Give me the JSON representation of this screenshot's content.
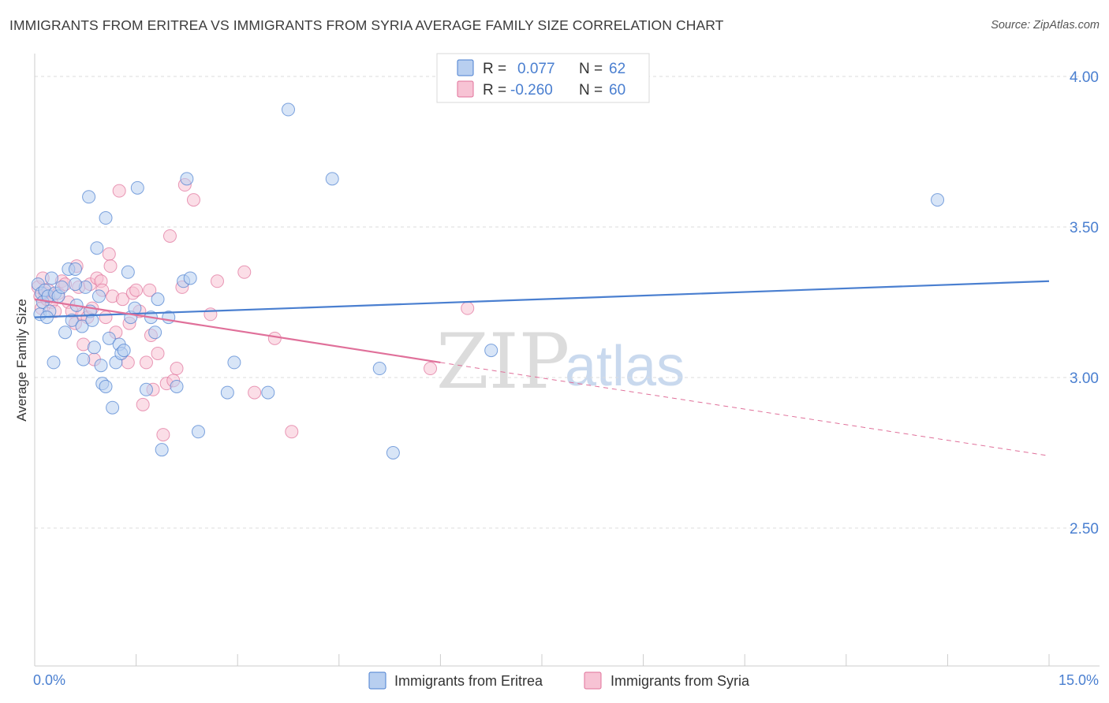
{
  "title": "IMMIGRANTS FROM ERITREA VS IMMIGRANTS FROM SYRIA AVERAGE FAMILY SIZE CORRELATION CHART",
  "source": "Source: ZipAtlas.com",
  "colors": {
    "eritrea": "#4a7fd0",
    "eritrea_fill": "#b8cff0",
    "syria": "#e0709a",
    "syria_fill": "#f7c3d4",
    "axis_text": "#4a7fd0"
  },
  "legend_top": {
    "row1": {
      "r_label": "R =",
      "r_value": "0.077",
      "n_label": "N =",
      "n_value": "62"
    },
    "row2": {
      "r_label": "R =",
      "r_value": "-0.260",
      "n_label": "N =",
      "n_value": "60"
    }
  },
  "watermark": {
    "part1": "ZIP",
    "part2": "atlas"
  },
  "chart_data": {
    "type": "scatter",
    "title": "IMMIGRANTS FROM ERITREA VS IMMIGRANTS FROM SYRIA AVERAGE FAMILY SIZE CORRELATION CHART",
    "xlabel": "",
    "ylabel": "Average Family Size",
    "xlim": [
      0,
      15
    ],
    "ylim": [
      2.0,
      4.05
    ],
    "x_tick_labels": [
      "0.0%",
      "15.0%"
    ],
    "y_ticks": [
      2.5,
      3.0,
      3.5,
      4.0
    ],
    "y_tick_labels": [
      "2.50",
      "3.00",
      "3.50",
      "4.00"
    ],
    "grid": true,
    "series": [
      {
        "name": "Immigrants from Eritrea",
        "r": 0.077,
        "n": 62,
        "trend": {
          "x0": 0.0,
          "y0": 3.2,
          "x1": 15.0,
          "y1": 3.32,
          "style": "solid"
        },
        "points": [
          [
            0.05,
            3.31
          ],
          [
            0.08,
            3.21
          ],
          [
            0.1,
            3.28
          ],
          [
            0.12,
            3.25
          ],
          [
            0.15,
            3.29
          ],
          [
            0.2,
            3.27
          ],
          [
            0.22,
            3.22
          ],
          [
            0.25,
            3.33
          ],
          [
            0.28,
            3.05
          ],
          [
            0.3,
            3.28
          ],
          [
            0.35,
            3.27
          ],
          [
            0.4,
            3.3
          ],
          [
            0.45,
            3.15
          ],
          [
            0.5,
            3.36
          ],
          [
            0.55,
            3.19
          ],
          [
            0.6,
            3.36
          ],
          [
            0.62,
            3.24
          ],
          [
            0.7,
            3.17
          ],
          [
            0.72,
            3.06
          ],
          [
            0.75,
            3.3
          ],
          [
            0.8,
            3.6
          ],
          [
            0.82,
            3.22
          ],
          [
            0.85,
            3.19
          ],
          [
            0.88,
            3.1
          ],
          [
            0.92,
            3.43
          ],
          [
            0.95,
            3.27
          ],
          [
            0.98,
            3.04
          ],
          [
            1.0,
            2.98
          ],
          [
            1.05,
            3.53
          ],
          [
            1.05,
            2.97
          ],
          [
            1.1,
            3.13
          ],
          [
            1.15,
            2.9
          ],
          [
            1.2,
            3.05
          ],
          [
            1.25,
            3.11
          ],
          [
            1.28,
            3.08
          ],
          [
            1.32,
            3.09
          ],
          [
            1.38,
            3.35
          ],
          [
            1.42,
            3.2
          ],
          [
            1.48,
            3.23
          ],
          [
            1.52,
            3.63
          ],
          [
            1.65,
            2.96
          ],
          [
            1.72,
            3.2
          ],
          [
            1.78,
            3.15
          ],
          [
            1.82,
            3.26
          ],
          [
            1.88,
            2.76
          ],
          [
            1.98,
            3.2
          ],
          [
            2.1,
            2.97
          ],
          [
            2.2,
            3.32
          ],
          [
            2.25,
            3.66
          ],
          [
            2.3,
            3.33
          ],
          [
            2.42,
            2.82
          ],
          [
            2.85,
            2.95
          ],
          [
            2.95,
            3.05
          ],
          [
            3.45,
            2.95
          ],
          [
            3.75,
            3.89
          ],
          [
            4.4,
            3.66
          ],
          [
            5.1,
            3.03
          ],
          [
            5.3,
            2.75
          ],
          [
            6.75,
            3.09
          ],
          [
            13.35,
            3.59
          ],
          [
            0.18,
            3.2
          ],
          [
            0.6,
            3.31
          ]
        ]
      },
      {
        "name": "Immigrants from Syria",
        "r": -0.26,
        "n": 60,
        "trend": {
          "x0": 0.0,
          "y0": 3.26,
          "x1": 6.0,
          "y1": 3.05,
          "style": "solid",
          "dash_to_x": 15.0,
          "dash_to_y": 2.74
        },
        "points": [
          [
            0.05,
            3.3
          ],
          [
            0.08,
            3.27
          ],
          [
            0.1,
            3.23
          ],
          [
            0.12,
            3.33
          ],
          [
            0.15,
            3.28
          ],
          [
            0.18,
            3.26
          ],
          [
            0.2,
            3.29
          ],
          [
            0.25,
            3.25
          ],
          [
            0.3,
            3.22
          ],
          [
            0.35,
            3.28
          ],
          [
            0.4,
            3.32
          ],
          [
            0.45,
            3.31
          ],
          [
            0.5,
            3.25
          ],
          [
            0.55,
            3.22
          ],
          [
            0.6,
            3.18
          ],
          [
            0.62,
            3.37
          ],
          [
            0.65,
            3.3
          ],
          [
            0.7,
            3.21
          ],
          [
            0.72,
            3.11
          ],
          [
            0.78,
            3.2
          ],
          [
            0.82,
            3.31
          ],
          [
            0.85,
            3.23
          ],
          [
            0.88,
            3.06
          ],
          [
            0.92,
            3.33
          ],
          [
            0.98,
            3.32
          ],
          [
            1.0,
            3.29
          ],
          [
            1.05,
            3.2
          ],
          [
            1.1,
            3.41
          ],
          [
            1.12,
            3.37
          ],
          [
            1.15,
            3.27
          ],
          [
            1.2,
            3.15
          ],
          [
            1.25,
            3.62
          ],
          [
            1.3,
            3.26
          ],
          [
            1.38,
            3.05
          ],
          [
            1.4,
            3.18
          ],
          [
            1.45,
            3.28
          ],
          [
            1.5,
            3.29
          ],
          [
            1.55,
            3.22
          ],
          [
            1.6,
            2.91
          ],
          [
            1.65,
            3.05
          ],
          [
            1.7,
            3.29
          ],
          [
            1.72,
            3.14
          ],
          [
            1.75,
            2.96
          ],
          [
            1.82,
            3.08
          ],
          [
            1.9,
            2.81
          ],
          [
            1.95,
            2.98
          ],
          [
            2.0,
            3.47
          ],
          [
            2.05,
            2.99
          ],
          [
            2.1,
            3.03
          ],
          [
            2.18,
            3.3
          ],
          [
            2.22,
            3.64
          ],
          [
            2.35,
            3.59
          ],
          [
            2.6,
            3.21
          ],
          [
            2.7,
            3.32
          ],
          [
            3.1,
            3.35
          ],
          [
            3.25,
            2.95
          ],
          [
            3.55,
            3.13
          ],
          [
            3.8,
            2.82
          ],
          [
            5.85,
            3.03
          ],
          [
            6.4,
            3.23
          ]
        ]
      }
    ]
  }
}
